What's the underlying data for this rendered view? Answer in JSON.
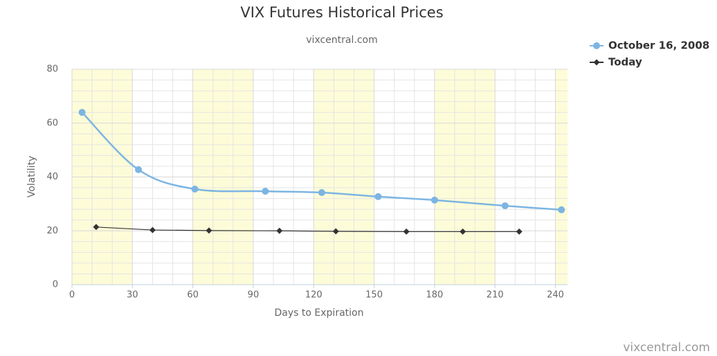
{
  "chart_data": {
    "type": "line",
    "title": "VIX Futures Historical Prices",
    "subtitle": "vixcentral.com",
    "credit": "vixcentral.com",
    "x_label": "Days to Expiration",
    "y_label": "Volatility",
    "xlim": [
      0,
      246
    ],
    "ylim": [
      0,
      80
    ],
    "xticks": [
      0,
      30,
      60,
      90,
      120,
      150,
      180,
      210,
      240
    ],
    "yticks": [
      0,
      20,
      40,
      60,
      80
    ],
    "grid": true,
    "plot_bands": [
      [
        0,
        30
      ],
      [
        60,
        90
      ],
      [
        120,
        150
      ],
      [
        180,
        210
      ],
      [
        240,
        246
      ]
    ],
    "band_color": "#fdfcd8",
    "legend": "top-right",
    "series": [
      {
        "name": "October 16, 2008",
        "color": "#7cb5e2",
        "smooth": true,
        "marker": "circle",
        "x": [
          5,
          33,
          61,
          96,
          124,
          152,
          180,
          215,
          243
        ],
        "values": [
          64.0,
          42.7,
          35.5,
          34.7,
          34.2,
          32.7,
          31.4,
          29.3,
          27.8
        ]
      },
      {
        "name": "Today",
        "color": "#333333",
        "smooth": false,
        "marker": "diamond",
        "x": [
          12,
          40,
          68,
          103,
          131,
          166,
          194,
          222
        ],
        "values": [
          21.4,
          20.3,
          20.1,
          20.0,
          19.8,
          19.7,
          19.7,
          19.7
        ]
      }
    ]
  }
}
